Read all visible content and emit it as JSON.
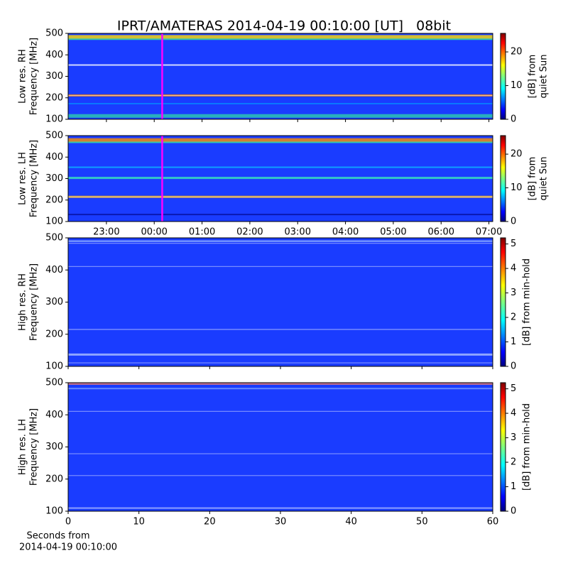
{
  "title": "IPRT/AMATERAS 2014-04-19 00:10:00 [UT]   08bit",
  "chart_data": [
    {
      "type": "heatmap",
      "ylabel": [
        "Low res. RH",
        "Frequency [MHz]"
      ],
      "ylim": [
        100,
        500
      ],
      "yticks": [
        100,
        200,
        300,
        400,
        500
      ],
      "colormap": "jet",
      "clabel": [
        "[dB] from",
        "quiet Sun"
      ],
      "clim": [
        0,
        25.5
      ],
      "cticks": [
        0,
        10,
        20
      ],
      "marker_x": 24.1667,
      "marker_color": "#ff00ff"
    },
    {
      "type": "heatmap",
      "ylabel": [
        "Low res. LH",
        "Frequency [MHz]"
      ],
      "ylim": [
        100,
        500
      ],
      "yticks": [
        100,
        200,
        300,
        400,
        500
      ],
      "xlim": [
        22.2,
        31.08
      ],
      "xticks": [
        {
          "value": 23,
          "label": "23:00"
        },
        {
          "value": 24,
          "label": "00:00"
        },
        {
          "value": 25,
          "label": "01:00"
        },
        {
          "value": 26,
          "label": "02:00"
        },
        {
          "value": 27,
          "label": "03:00"
        },
        {
          "value": 28,
          "label": "04:00"
        },
        {
          "value": 29,
          "label": "05:00"
        },
        {
          "value": 30,
          "label": "06:00"
        },
        {
          "value": 31,
          "label": "07:00"
        }
      ],
      "colormap": "jet",
      "clabel": [
        "[dB] from",
        "quiet Sun"
      ],
      "clim": [
        0,
        25.5
      ],
      "cticks": [
        0,
        10,
        20
      ],
      "marker_x": 24.1667,
      "marker_color": "#ff00ff"
    },
    {
      "type": "heatmap",
      "ylabel": [
        "High res. RH",
        "Frequency [MHz]"
      ],
      "ylim": [
        100,
        500
      ],
      "yticks": [
        100,
        200,
        300,
        400,
        500
      ],
      "colormap": "jet",
      "clabel": [
        "[dB] from min-hold"
      ],
      "clim": [
        0,
        5.25
      ],
      "cticks": [
        0,
        1,
        2,
        3,
        4,
        5
      ]
    },
    {
      "type": "heatmap",
      "ylabel": [
        "High res. LH",
        "Frequency [MHz]"
      ],
      "ylim": [
        100,
        500
      ],
      "yticks": [
        100,
        200,
        300,
        400,
        500
      ],
      "xlim": [
        0,
        60
      ],
      "xticks": [
        0,
        10,
        20,
        30,
        40,
        50,
        60
      ],
      "xlabel": [
        "Seconds from",
        "2014-04-19 00:10:00"
      ],
      "colormap": "jet",
      "clabel": [
        "[dB] from min-hold"
      ],
      "clim": [
        0,
        5.25
      ],
      "cticks": [
        0,
        1,
        2,
        3,
        4,
        5
      ]
    }
  ]
}
